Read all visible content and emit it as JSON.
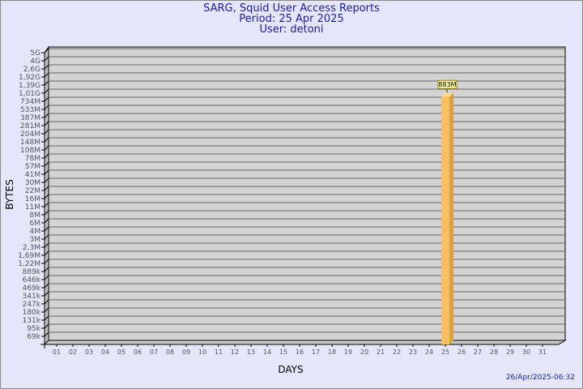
{
  "chart_data": {
    "type": "bar",
    "title": "SARG, Squid User Access Reports",
    "subtitle": [
      "Period: 25 Apr 2025",
      "User: detoni"
    ],
    "xlabel": "DAYS",
    "ylabel": "BYTES",
    "y_scale": "log",
    "y_ticks": [
      "5G",
      "4G",
      "2,6G",
      "1,92G",
      "1,39G",
      "1,01G",
      "734M",
      "533M",
      "387M",
      "281M",
      "204M",
      "148M",
      "108M",
      "78M",
      "57M",
      "41M",
      "30M",
      "22M",
      "16M",
      "11M",
      "8M",
      "6M",
      "4M",
      "3M",
      "2,3M",
      "1,69M",
      "1,22M",
      "889k",
      "646k",
      "469k",
      "341k",
      "247k",
      "180k",
      "131k",
      "95k",
      "69k"
    ],
    "y_range_bytes": [
      69000,
      5000000000
    ],
    "categories": [
      "01",
      "02",
      "03",
      "04",
      "05",
      "06",
      "07",
      "08",
      "09",
      "10",
      "11",
      "12",
      "13",
      "14",
      "15",
      "16",
      "17",
      "18",
      "19",
      "20",
      "21",
      "22",
      "23",
      "24",
      "25",
      "26",
      "27",
      "28",
      "29",
      "30",
      "31"
    ],
    "bars": [
      {
        "day": "25",
        "value_bytes": 883000000,
        "label": "883M"
      }
    ],
    "grid": true
  },
  "footer": {
    "timestamp": "26/Apr/2025-06:32"
  },
  "colors": {
    "title": "#1a1aa6",
    "bar": "#f8c060",
    "bar_side": "#d9a040",
    "plot_bg": "#d3d3d3"
  }
}
